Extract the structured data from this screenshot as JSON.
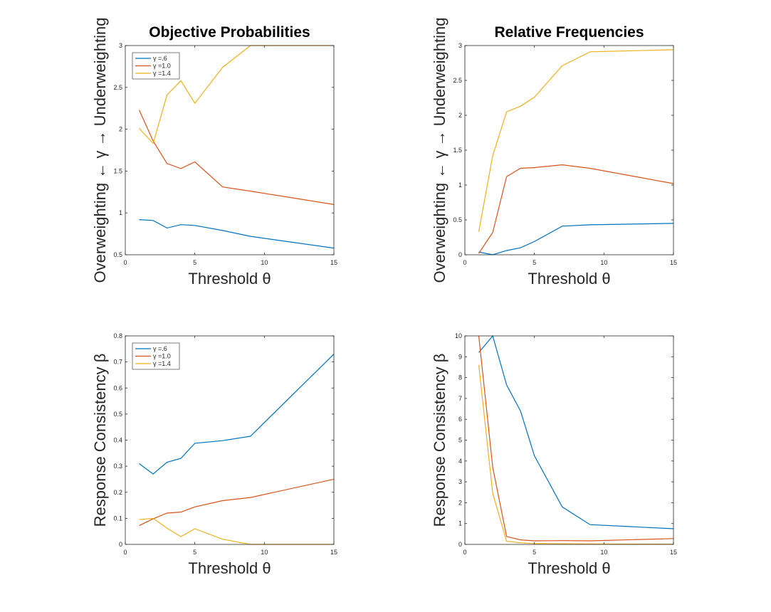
{
  "chart_data": [
    {
      "type": "line",
      "title": "Objective Probabilities",
      "xlabel": "Threshold θ",
      "ylabel": "Overweighting ← γ → Underweighting",
      "xlim": [
        0,
        15
      ],
      "ylim": [
        0.5,
        3
      ],
      "xticks": [
        0,
        5,
        10,
        15
      ],
      "yticks": [
        0.5,
        1,
        1.5,
        2,
        2.5,
        3
      ],
      "legend": "top-left",
      "grid": false,
      "x": [
        1,
        2,
        3,
        4,
        5,
        7,
        9,
        15
      ],
      "series": [
        {
          "name": "γ =.6",
          "color": "#0072BD",
          "values": [
            0.92,
            0.91,
            0.82,
            0.86,
            0.85,
            0.79,
            0.72,
            0.58
          ]
        },
        {
          "name": "γ =1.0",
          "color": "#D95319",
          "values": [
            2.23,
            1.86,
            1.59,
            1.53,
            1.61,
            1.31,
            1.26,
            1.1
          ]
        },
        {
          "name": "γ =1.4",
          "color": "#EDB120",
          "values": [
            2.01,
            1.83,
            2.41,
            2.58,
            2.31,
            2.74,
            3.0,
            3.0
          ]
        }
      ]
    },
    {
      "type": "line",
      "title": "Relative Frequencies",
      "xlabel": "Threshold θ",
      "ylabel": "Overweighting ← γ → Underweighting",
      "xlim": [
        0,
        15
      ],
      "ylim": [
        0,
        3
      ],
      "xticks": [
        0,
        5,
        10,
        15
      ],
      "yticks": [
        0,
        0.5,
        1,
        1.5,
        2,
        2.5,
        3
      ],
      "grid": false,
      "x": [
        1,
        2,
        3,
        4,
        5,
        7,
        9,
        15
      ],
      "series": [
        {
          "name": "γ =.6",
          "color": "#0072BD",
          "values": [
            0.04,
            0.0,
            0.06,
            0.1,
            0.19,
            0.41,
            0.43,
            0.45
          ]
        },
        {
          "name": "γ =1.0",
          "color": "#D95319",
          "values": [
            0.02,
            0.32,
            1.12,
            1.24,
            1.25,
            1.29,
            1.24,
            1.02
          ]
        },
        {
          "name": "γ =1.4",
          "color": "#EDB120",
          "values": [
            0.33,
            1.42,
            2.05,
            2.13,
            2.26,
            2.71,
            2.91,
            2.94
          ]
        }
      ]
    },
    {
      "type": "line",
      "title": "",
      "xlabel": "Threshold θ",
      "ylabel": "Response Consistency β",
      "xlim": [
        0,
        15
      ],
      "ylim": [
        0,
        0.8
      ],
      "xticks": [
        0,
        5,
        10,
        15
      ],
      "yticks": [
        0,
        0.1,
        0.2,
        0.3,
        0.4,
        0.5,
        0.6,
        0.7,
        0.8
      ],
      "legend": "top-left",
      "grid": false,
      "x": [
        1,
        2,
        3,
        4,
        5,
        7,
        9,
        15
      ],
      "series": [
        {
          "name": "γ =.6",
          "color": "#0072BD",
          "values": [
            0.31,
            0.27,
            0.315,
            0.33,
            0.388,
            0.398,
            0.415,
            0.73
          ]
        },
        {
          "name": "γ =1.0",
          "color": "#D95319",
          "values": [
            0.072,
            0.098,
            0.12,
            0.124,
            0.144,
            0.168,
            0.18,
            0.25
          ]
        },
        {
          "name": "γ =1.4",
          "color": "#EDB120",
          "values": [
            0.095,
            0.1,
            0.062,
            0.03,
            0.06,
            0.02,
            0.0,
            0.0
          ]
        }
      ]
    },
    {
      "type": "line",
      "title": "",
      "xlabel": "Threshold θ",
      "ylabel": "Response Consistency β",
      "xlim": [
        0,
        15
      ],
      "ylim": [
        0,
        10
      ],
      "xticks": [
        0,
        5,
        10,
        15
      ],
      "yticks": [
        0,
        1,
        2,
        3,
        4,
        5,
        6,
        7,
        8,
        9,
        10
      ],
      "grid": false,
      "x": [
        1,
        2,
        3,
        4,
        5,
        7,
        9,
        15
      ],
      "series": [
        {
          "name": "γ =.6",
          "color": "#0072BD",
          "values": [
            9.2,
            10.0,
            7.65,
            6.4,
            4.25,
            1.8,
            0.95,
            0.75
          ]
        },
        {
          "name": "γ =1.0",
          "color": "#D95319",
          "values": [
            10.0,
            3.7,
            0.38,
            0.22,
            0.17,
            0.18,
            0.17,
            0.28
          ]
        },
        {
          "name": "γ =1.4",
          "color": "#EDB120",
          "values": [
            8.6,
            2.45,
            0.15,
            0.08,
            0.04,
            0.03,
            0.02,
            0.01
          ]
        }
      ]
    }
  ]
}
